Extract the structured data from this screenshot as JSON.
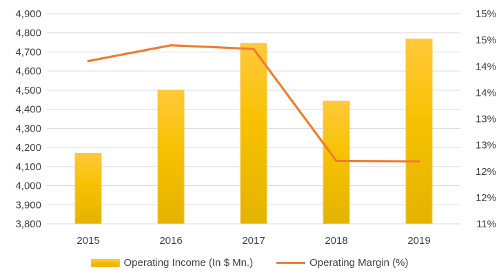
{
  "chart_data": {
    "type": "bar+line",
    "categories": [
      "2015",
      "2016",
      "2017",
      "2018",
      "2019"
    ],
    "series": [
      {
        "name": "Operating Income (In $ Mn.)",
        "type": "bar",
        "axis": "left",
        "values": [
          4170,
          4500,
          4745,
          4443,
          4768
        ],
        "color": "#f2b800"
      },
      {
        "name": "Operating Margin (%)",
        "type": "line",
        "axis": "right",
        "values": [
          14.1,
          14.4,
          14.33,
          12.2,
          12.19
        ],
        "color": "#ed7d31"
      }
    ],
    "y_left": {
      "ylim": [
        3800,
        4900
      ],
      "ticks": [
        3800,
        3900,
        4000,
        4100,
        4200,
        4300,
        4400,
        4500,
        4600,
        4700,
        4800,
        4900
      ],
      "tick_labels": [
        "3,800",
        "3,900",
        "4,000",
        "4,100",
        "4,200",
        "4,300",
        "4,400",
        "4,500",
        "4,600",
        "4,700",
        "4,800",
        "4,900"
      ]
    },
    "y_right": {
      "ylim": [
        11,
        15
      ],
      "ticks": [
        11,
        11.5,
        12,
        12.5,
        13,
        13.5,
        14,
        14.5,
        15
      ],
      "tick_labels": [
        "11%",
        "12%",
        "12%",
        "13%",
        "13%",
        "14%",
        "14%",
        "15%",
        "15%"
      ]
    },
    "grid": true,
    "legend_position": "bottom"
  }
}
